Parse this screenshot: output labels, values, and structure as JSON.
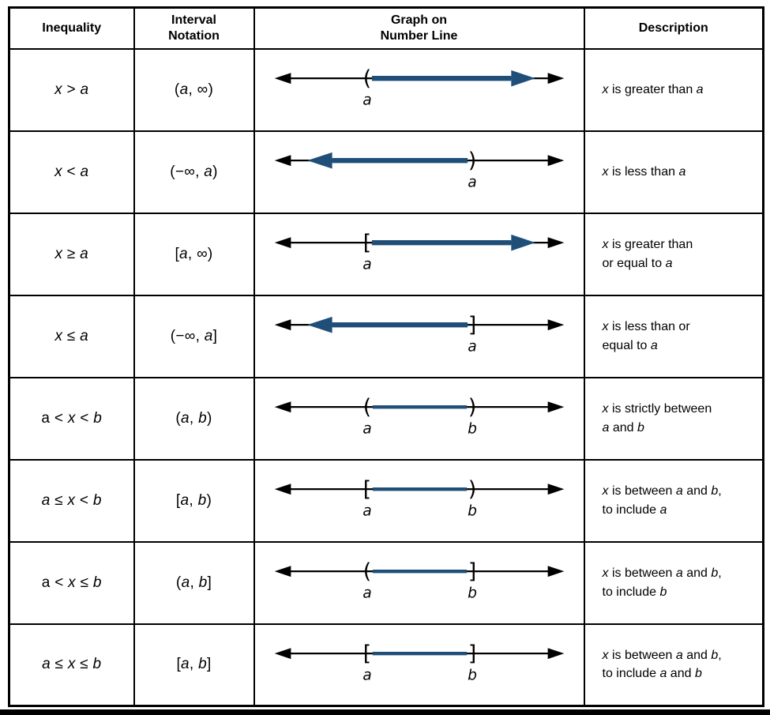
{
  "figure": {
    "colors": {
      "highlight": "#1F4E79",
      "line": "#000000",
      "text": "#000000",
      "border": "#000000",
      "background": "#FFFFFF"
    },
    "headers": [
      {
        "lines": [
          "Inequality"
        ]
      },
      {
        "lines": [
          "Interval",
          "Notation"
        ]
      },
      {
        "lines": [
          "Graph on",
          "Number Line"
        ]
      },
      {
        "lines": [
          "Description"
        ]
      }
    ],
    "rows": [
      {
        "inequality": "*x* > *a*",
        "interval": "(*a*, ∞)",
        "graph": {
          "kind": "ray-right",
          "symbol": "(",
          "label": "a"
        },
        "description": [
          "*x* is greater than *a*"
        ]
      },
      {
        "inequality": "*x* < *a*",
        "interval": "(−∞, *a*)",
        "graph": {
          "kind": "ray-left",
          "symbol": ")",
          "label": "a"
        },
        "description": [
          "*x* is less than *a*"
        ]
      },
      {
        "inequality": "*x* ≥ *a*",
        "interval": "[*a*, ∞)",
        "graph": {
          "kind": "ray-right",
          "symbol": "[",
          "label": "a"
        },
        "description": [
          "*x* is greater than",
          "or equal to *a*"
        ]
      },
      {
        "inequality": "*x* ≤ *a*",
        "interval": "(−∞, *a*]",
        "graph": {
          "kind": "ray-left",
          "symbol": "]",
          "label": "a"
        },
        "description": [
          "*x* is less than or",
          "equal to *a*"
        ]
      },
      {
        "inequality": "a < *x* < *b*",
        "interval": "(*a*, *b*)",
        "graph": {
          "kind": "segment",
          "left_symbol": "(",
          "right_symbol": ")",
          "left_label": "a",
          "right_label": "b"
        },
        "description": [
          "*x* is strictly between",
          "*a* and *b*"
        ]
      },
      {
        "inequality": "*a* ≤ *x* < *b*",
        "interval": "[*a*, *b*)",
        "graph": {
          "kind": "segment",
          "left_symbol": "[",
          "right_symbol": ")",
          "left_label": "a",
          "right_label": "b"
        },
        "description": [
          "*x* is between *a* and *b*,",
          "to include *a*"
        ]
      },
      {
        "inequality": "a < *x* ≤ *b*",
        "interval": "(*a*, *b*]",
        "graph": {
          "kind": "segment",
          "left_symbol": "(",
          "right_symbol": "]",
          "left_label": "a",
          "right_label": "b"
        },
        "description": [
          "*x* is between *a* and *b*,",
          "to include *b*"
        ]
      },
      {
        "inequality": "*a* ≤ *x* ≤ *b*",
        "interval": "[*a*, *b*]",
        "graph": {
          "kind": "segment",
          "left_symbol": "[",
          "right_symbol": "]",
          "left_label": "a",
          "right_label": "b"
        },
        "description": [
          "*x* is between *a* and *b*,",
          "to include *a* and *b*"
        ]
      }
    ]
  }
}
